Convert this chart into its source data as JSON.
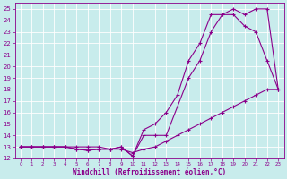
{
  "xlabel": "Windchill (Refroidissement éolien,°C)",
  "background_color": "#c8ecec",
  "grid_color": "#ffffff",
  "line_color": "#8b008b",
  "xlim": [
    -0.5,
    23.5
  ],
  "ylim": [
    12,
    25.5
  ],
  "xticks": [
    0,
    1,
    2,
    3,
    4,
    5,
    6,
    7,
    8,
    9,
    10,
    11,
    12,
    13,
    14,
    15,
    16,
    17,
    18,
    19,
    20,
    21,
    22,
    23
  ],
  "yticks": [
    12,
    13,
    14,
    15,
    16,
    17,
    18,
    19,
    20,
    21,
    22,
    23,
    24,
    25
  ],
  "line1_x": [
    0,
    1,
    2,
    3,
    4,
    5,
    6,
    7,
    8,
    9,
    10,
    11,
    12,
    13,
    14,
    15,
    16,
    17,
    18,
    19,
    20,
    21,
    22,
    23
  ],
  "line1_y": [
    13,
    13,
    13,
    13,
    13,
    13,
    13,
    13,
    12.8,
    12.8,
    12.5,
    12.8,
    13,
    13.5,
    14,
    14.5,
    15,
    15.5,
    16,
    16.5,
    17,
    17.5,
    18,
    18
  ],
  "line2_x": [
    0,
    1,
    2,
    3,
    4,
    5,
    6,
    7,
    8,
    9,
    10,
    11,
    12,
    13,
    14,
    15,
    16,
    17,
    18,
    19,
    20,
    21,
    22,
    23
  ],
  "line2_y": [
    13,
    13,
    13,
    13,
    13,
    12.8,
    12.7,
    12.8,
    12.8,
    13,
    12.2,
    14,
    14,
    14,
    16.5,
    19,
    20.5,
    23,
    24.5,
    24.5,
    23.5,
    23,
    20.5,
    18
  ],
  "line3_x": [
    0,
    1,
    2,
    3,
    4,
    5,
    6,
    7,
    8,
    9,
    10,
    11,
    12,
    13,
    14,
    15,
    16,
    17,
    18,
    19,
    20,
    21,
    22,
    23
  ],
  "line3_y": [
    13,
    13,
    13,
    13,
    13,
    12.8,
    12.7,
    12.8,
    12.8,
    13,
    12.2,
    14.5,
    15,
    16,
    17.5,
    20.5,
    22,
    24.5,
    24.5,
    25,
    24.5,
    25,
    25,
    18
  ],
  "tick_fontsize": 5,
  "xlabel_fontsize": 5.5
}
